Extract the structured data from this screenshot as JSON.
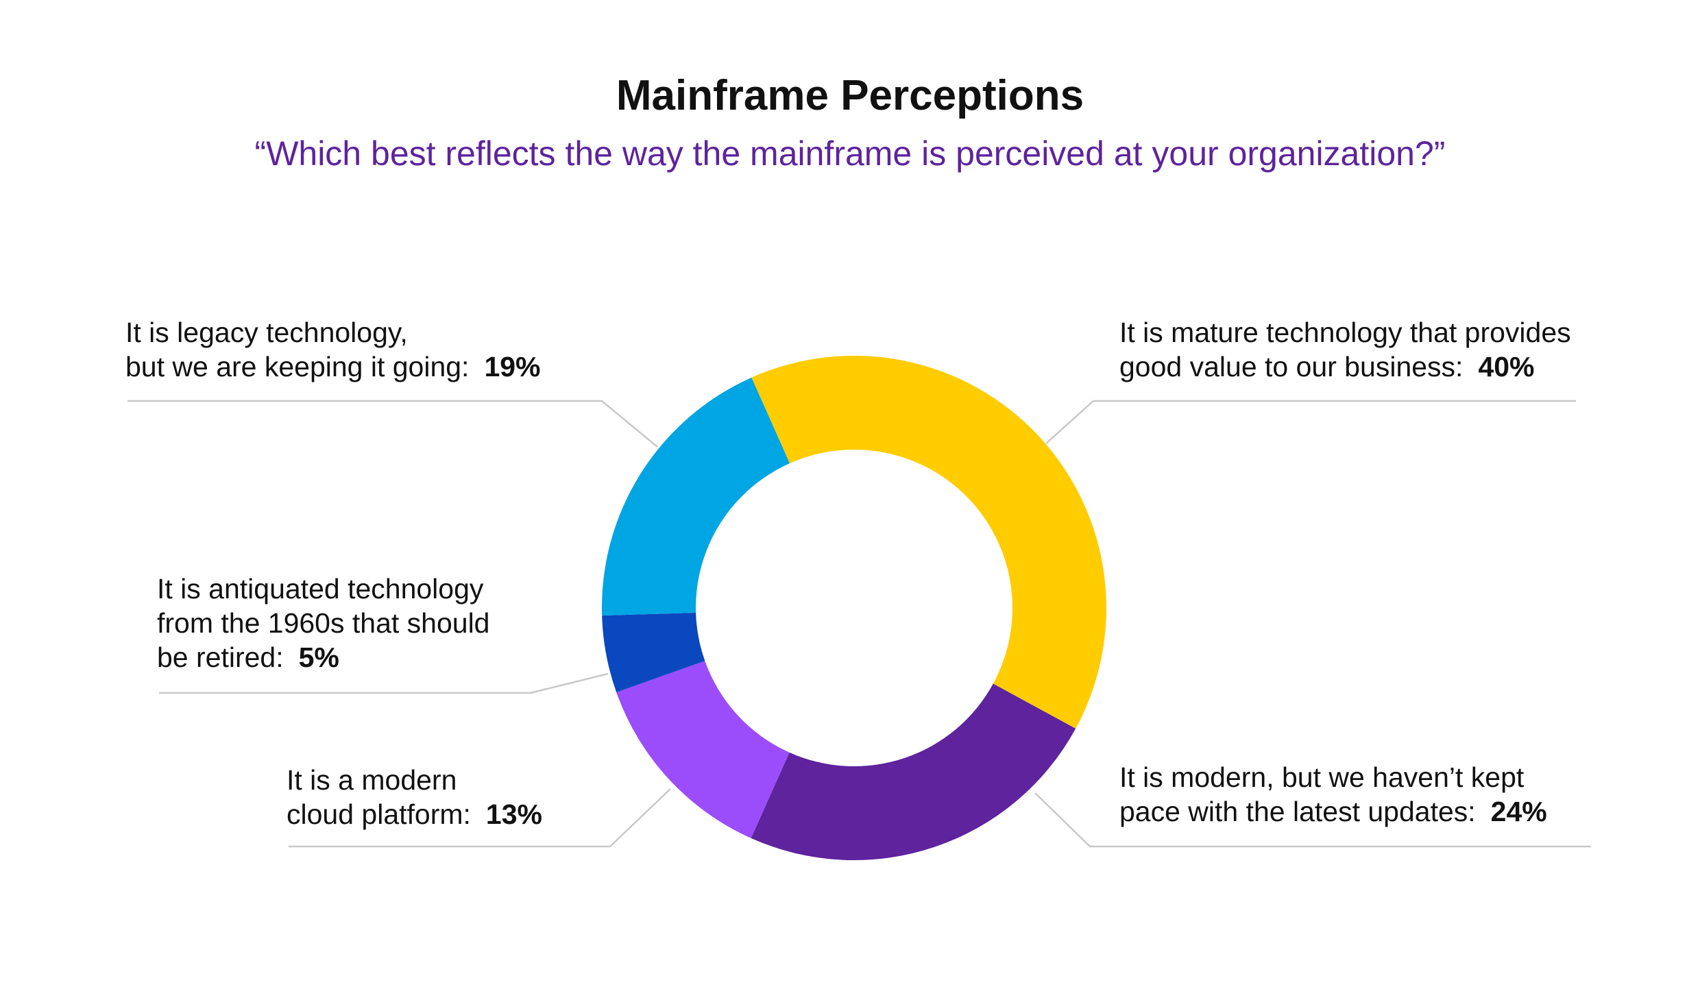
{
  "chart_data": {
    "type": "pie",
    "variant": "donut",
    "title": "Mainframe Perceptions",
    "subtitle": "“Which best reflects the way the mainframe is perceived at your organization?”",
    "slices": [
      {
        "lines": [
          "It is mature technology that provides",
          "good value to our business:"
        ],
        "value": 40,
        "value_label": "40%",
        "color": "#FFCC00"
      },
      {
        "lines": [
          "It is modern, but we haven’t kept",
          "pace with the latest updates:"
        ],
        "value": 24,
        "value_label": "24%",
        "color": "#5E239D"
      },
      {
        "lines": [
          "It is a modern",
          "cloud platform:"
        ],
        "value": 13,
        "value_label": "13%",
        "color": "#9B4DFC"
      },
      {
        "lines": [
          "It is antiquated technology",
          "from the 1960s that should",
          "be retired:"
        ],
        "value": 5,
        "value_label": "5%",
        "color": "#0B47BF"
      },
      {
        "lines": [
          "It is legacy technology,",
          "but we are keeping it going:"
        ],
        "value": 19,
        "value_label": "19%",
        "color": "#00A5E3"
      }
    ]
  }
}
